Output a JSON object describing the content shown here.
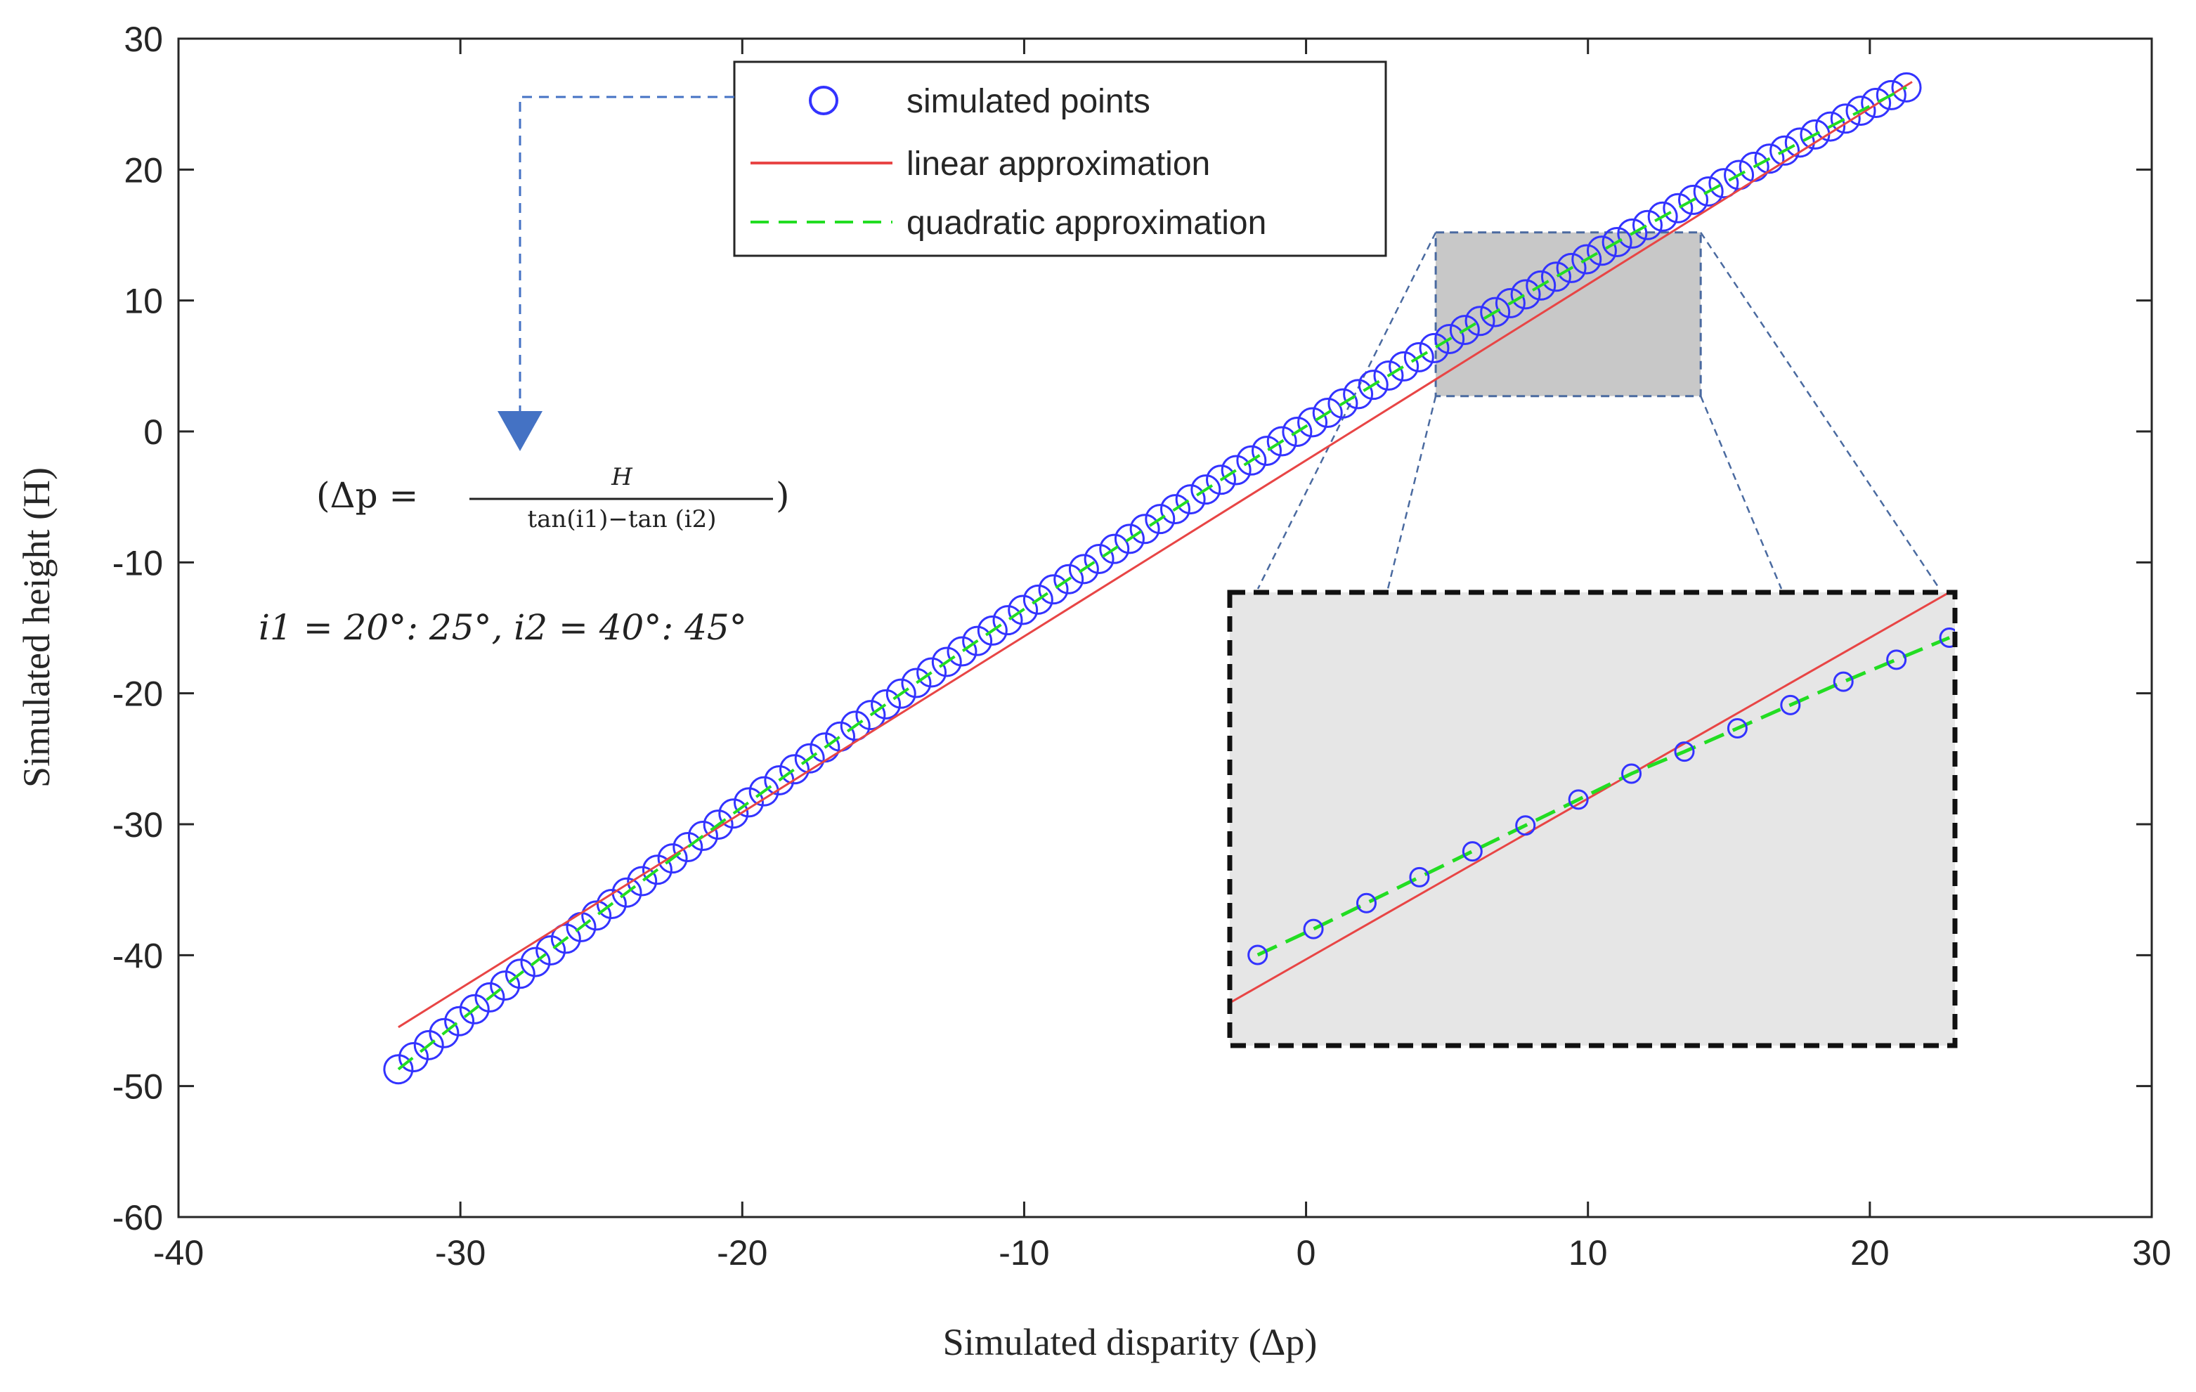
{
  "chart_data": {
    "type": "scatter",
    "title": "",
    "xlabel": "Simulated disparity (Δp)",
    "ylabel": "Simulated height (H)",
    "xlim": [
      -40,
      30
    ],
    "ylim": [
      -60,
      30
    ],
    "xticks": [
      "-40",
      "-30",
      "-20",
      "-10",
      "0",
      "10",
      "20",
      "30"
    ],
    "yticks": [
      "30",
      "20",
      "10",
      "0",
      "-10",
      "-20",
      "-30",
      "-40",
      "-50",
      "-60"
    ],
    "x_tick_values": [
      -40,
      -30,
      -20,
      -10,
      0,
      10,
      20,
      30
    ],
    "y_tick_values": [
      30,
      20,
      10,
      0,
      -10,
      -20,
      -30,
      -40,
      -50,
      -60
    ],
    "series": [
      {
        "name": "simulated points",
        "style": "circles",
        "color": "#3333ff",
        "model": "quadratic",
        "coefficients": {
          "a": -0.0058,
          "b": 1.3385,
          "c": 0.4
        },
        "x_range": [
          -32.2,
          21.3
        ],
        "count": 100
      },
      {
        "name": "linear approximation",
        "style": "solid",
        "color": "#e84545",
        "points": [
          [
            -32.2,
            -45.5
          ],
          [
            21.5,
            26.7
          ]
        ]
      },
      {
        "name": "quadratic approximation",
        "style": "dashed",
        "color": "#22dd22",
        "model": "quadratic",
        "coefficients": {
          "a": -0.0058,
          "b": 1.3385,
          "c": 0.4
        },
        "x_range": [
          -32.2,
          21.3
        ]
      }
    ],
    "legend": {
      "position": "top-center",
      "entries": [
        "simulated points",
        "linear approximation",
        "quadratic approximation"
      ]
    },
    "zoom_region": {
      "x_range": [
        4.6,
        14.0
      ],
      "y_range": [
        2.7,
        15.2
      ],
      "color": "#c8c8c8"
    },
    "inset": {
      "description": "magnified view of zoom region",
      "x_range": [
        -3,
        23
      ],
      "y_range": [
        -47,
        -12
      ],
      "points_x": [
        -2.0,
        0.0,
        1.9,
        3.8,
        5.7,
        7.6,
        9.5,
        11.4,
        13.3,
        15.2,
        17.1,
        19.0,
        20.9,
        22.8
      ],
      "points_y": [
        -40.0,
        -38.0,
        -36.0,
        -34.0,
        -32.0,
        -30.0,
        -28.0,
        -26.0,
        -24.3,
        -22.5,
        -20.7,
        -18.9,
        -17.2,
        -15.5
      ],
      "linear": [
        [
          -3.0,
          -43.7
        ],
        [
          22.8,
          -12.0
        ]
      ],
      "background": "#e6e6e6"
    },
    "annotations": {
      "formula_lhs": "(Δp =",
      "formula_num": "H",
      "formula_den": "tan(i1)−tan (i2)",
      "formula_close": ")",
      "angles": "i1 = 20°: 25°, i2 = 40°: 45°"
    }
  }
}
